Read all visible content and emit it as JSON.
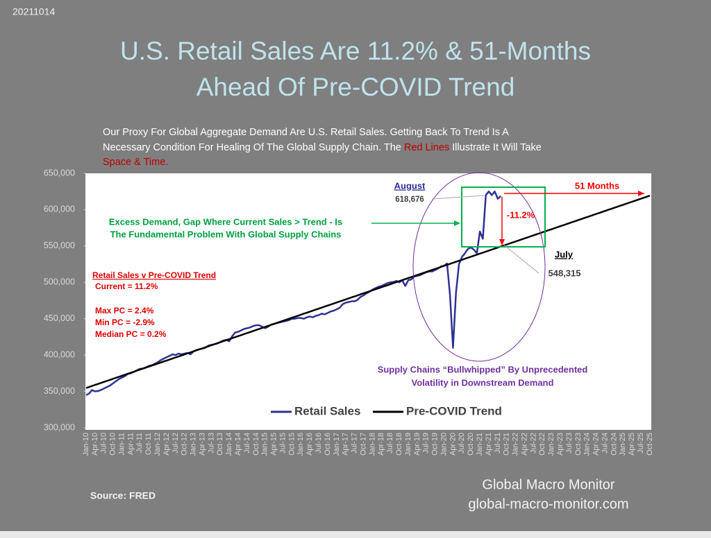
{
  "date": "20211014",
  "title": [
    "U.S. Retail Sales Are 11.2% & 51-Months",
    "Ahead Of Pre-COVID Trend"
  ],
  "description": [
    "Our Proxy For Global Aggregate Demand Are U.S. Retail Sales.  Getting Back To Trend Is A",
    "Necessary Condition For Healing Of The Global Supply Chain.  The",
    "Red Lines",
    "Illustrate It Will Take",
    "Space & Time."
  ],
  "source": "Source:  FRED",
  "footer": [
    "Global Macro Monitor",
    "global-macro-monitor.com"
  ],
  "chart_data": {
    "type": "line",
    "categories": [
      "Jan-10",
      null,
      null,
      "Apr-10",
      null,
      null,
      "Jul-10",
      null,
      null,
      "Oct-10",
      null,
      null,
      "Jan-11",
      null,
      null,
      "Apr-11",
      null,
      null,
      "Jul-11",
      null,
      null,
      "Oct-11",
      null,
      null,
      "Jan-12",
      null,
      null,
      "Apr-12",
      null,
      null,
      "Jul-12",
      null,
      null,
      "Oct-12",
      null,
      null,
      "Jan-13",
      null,
      null,
      "Apr-13",
      null,
      null,
      "Jul-13",
      null,
      null,
      "Oct-13",
      null,
      null,
      "Jan-14",
      null,
      null,
      "Apr-14",
      null,
      null,
      "Jul-14",
      null,
      null,
      "Oct-14",
      null,
      null,
      "Jan-15",
      null,
      null,
      "Apr-15",
      null,
      null,
      "Jul-15",
      null,
      null,
      "Oct-15",
      null,
      null,
      "Jan-16",
      null,
      null,
      "Apr-16",
      null,
      null,
      "Jul-16",
      null,
      null,
      "Oct-16",
      null,
      null,
      "Jan-17",
      null,
      null,
      "Apr-17",
      null,
      null,
      "Jul-17",
      null,
      null,
      "Oct-17",
      null,
      null,
      "Jan-18",
      null,
      null,
      "Apr-18",
      null,
      null,
      "Jul-18",
      null,
      null,
      "Oct-18",
      null,
      null,
      "Jan-19",
      null,
      null,
      "Apr-19",
      null,
      null,
      "Jul-19",
      null,
      null,
      "Oct-19",
      null,
      null,
      "Jan-20",
      null,
      null,
      "Apr-20",
      null,
      null,
      "Jul-20",
      null,
      null,
      "Oct-20",
      null,
      null,
      "Jan-21",
      null,
      null,
      "Apr-21",
      null,
      null,
      "Jul-21",
      null,
      null,
      "Oct-21",
      null,
      null,
      "Jan-22",
      null,
      null,
      "Apr-22",
      null,
      null,
      "Jul-22",
      null,
      null,
      "Oct-22",
      null,
      null,
      "Jan-23",
      null,
      null,
      "Apr-23",
      null,
      null,
      "Jul-23",
      null,
      null,
      "Oct-23",
      null,
      null,
      "Jan-24",
      null,
      null,
      "Apr-24",
      null,
      null,
      "Jul-24",
      null,
      null,
      "Oct-24",
      null,
      null,
      "Jan-25",
      null,
      null,
      "Apr-25",
      null,
      null,
      "Jul-25",
      null,
      null,
      "Oct-25"
    ],
    "series": [
      {
        "name": "Retail Sales",
        "color": "#2e3192",
        "values": [
          345000,
          347000,
          352000,
          350000,
          350500,
          352000,
          354000,
          356000,
          358000,
          361000,
          364000,
          367000,
          369000,
          371000,
          374000,
          375000,
          377000,
          379000,
          381000,
          381500,
          383000,
          385000,
          386000,
          388000,
          390000,
          393000,
          395000,
          397000,
          399000,
          401000,
          400000,
          402000,
          401000,
          402000,
          403000,
          401000,
          405000,
          407000,
          408000,
          409000,
          410000,
          413000,
          414000,
          415000,
          416000,
          418000,
          420000,
          421000,
          419000,
          426000,
          431000,
          432000,
          434000,
          436000,
          437000,
          438000,
          440000,
          441000,
          441000,
          439000,
          437000,
          439000,
          442000,
          443000,
          444000,
          445000,
          446000,
          447000,
          448000,
          450000,
          450000,
          451000,
          451000,
          450000,
          452000,
          453000,
          452000,
          454000,
          455000,
          457000,
          456000,
          458000,
          460000,
          461000,
          463000,
          465000,
          470000,
          472000,
          473000,
          474000,
          474000,
          476000,
          480000,
          482000,
          485000,
          487000,
          490000,
          492000,
          494000,
          495000,
          497000,
          499000,
          500000,
          500500,
          502000,
          500000,
          503000,
          495000,
          503000,
          504000,
          508000,
          509000,
          510000,
          512000,
          514000,
          515000,
          515000,
          517000,
          519000,
          522000,
          523000,
          526000,
          482000,
          410000,
          486000,
          525000,
          535000,
          540000,
          546000,
          548000,
          545000,
          540000,
          570000,
          560000,
          620000,
          625000,
          620000,
          625000,
          615000,
          618676,
          null,
          null,
          null,
          null,
          null,
          null,
          null,
          null,
          null,
          null,
          null,
          null,
          null,
          null,
          null,
          null,
          null,
          null,
          null,
          null,
          null,
          null,
          null,
          null,
          null,
          null,
          null,
          null,
          null,
          null,
          null,
          null,
          null,
          null,
          null,
          null,
          null,
          null,
          null,
          null,
          null,
          null,
          null,
          null,
          null,
          null,
          null,
          null,
          null,
          null
        ]
      },
      {
        "name": "Pre-COVID Trend",
        "color": "#000000",
        "values": [
          354700,
          356100,
          357500,
          358900,
          360300,
          361700,
          363100,
          364500,
          365900,
          367300,
          368700,
          370100,
          371500,
          372900,
          374300,
          375700,
          377100,
          378500,
          379900,
          381300,
          382700,
          384100,
          385500,
          386900,
          388300,
          389700,
          391100,
          392500,
          393900,
          395300,
          396700,
          398100,
          399500,
          400900,
          402300,
          403700,
          405100,
          406500,
          407900,
          409300,
          410700,
          412100,
          413500,
          414900,
          416300,
          417700,
          419100,
          420500,
          421900,
          423300,
          424700,
          426100,
          427500,
          428900,
          430300,
          431700,
          433100,
          434500,
          435900,
          437300,
          438700,
          440100,
          441500,
          442900,
          444300,
          445700,
          447100,
          448500,
          449900,
          451300,
          452700,
          454100,
          455500,
          456900,
          458300,
          459700,
          461100,
          462500,
          463900,
          465300,
          466700,
          468100,
          469500,
          470900,
          472300,
          473700,
          475100,
          476500,
          477900,
          479300,
          480700,
          482100,
          483500,
          484900,
          486300,
          487700,
          489100,
          490500,
          491900,
          493300,
          494700,
          496100,
          497500,
          498900,
          500300,
          501700,
          503100,
          504500,
          505900,
          507300,
          508700,
          510100,
          511500,
          512900,
          514300,
          515700,
          517100,
          518500,
          519900,
          521300,
          522700,
          524100,
          525500,
          526900,
          528300,
          529700,
          531100,
          532500,
          533900,
          535300,
          536700,
          538100,
          539500,
          540900,
          542300,
          543700,
          545100,
          546500,
          547900,
          549300,
          550700,
          552100,
          553500,
          554900,
          556300,
          557700,
          559100,
          560500,
          561900,
          563300,
          564700,
          566100,
          567500,
          568900,
          570300,
          571700,
          573100,
          574500,
          575900,
          577300,
          578700,
          580100,
          581500,
          582900,
          584300,
          585700,
          587100,
          588500,
          589900,
          591300,
          592700,
          594100,
          595500,
          596900,
          598300,
          599700,
          601100,
          602500,
          603900,
          605300,
          606700,
          608100,
          609500,
          610900,
          612300,
          613700,
          615100,
          616500,
          617900,
          619300
        ]
      }
    ],
    "ylim": [
      300000,
      650000
    ],
    "yticks": [
      {
        "value": 300000,
        "label": "300,000"
      },
      {
        "value": 350000,
        "label": "350,000"
      },
      {
        "value": 400000,
        "label": "400,000"
      },
      {
        "value": 450000,
        "label": "450,000"
      },
      {
        "value": 500000,
        "label": "500,000"
      },
      {
        "value": 550000,
        "label": "550,000"
      },
      {
        "value": 600000,
        "label": "600,000"
      },
      {
        "value": 650000,
        "label": "650,000"
      }
    ],
    "annotations": {
      "august": "August",
      "august_value": "618,676",
      "months": "51 Months",
      "gap": "-11.2%",
      "july": "July",
      "july_value": "548,315",
      "excess": [
        "Excess Demand, Gap Where Current Sales > Trend - Is",
        "The Fundamental Problem  With Global Supply Chains"
      ],
      "stats": [
        "Retail Sales v Pre-COVID Trend",
        "Current =  11.2%",
        "Max PC       =   2.4%",
        "Min  PC      =  -2.9%",
        "Median PC =   0.2%"
      ],
      "bullwhip": [
        "Supply Chains “Bullwhipped” By Unprecedented",
        "Volatility in Downstream Demand"
      ]
    }
  }
}
